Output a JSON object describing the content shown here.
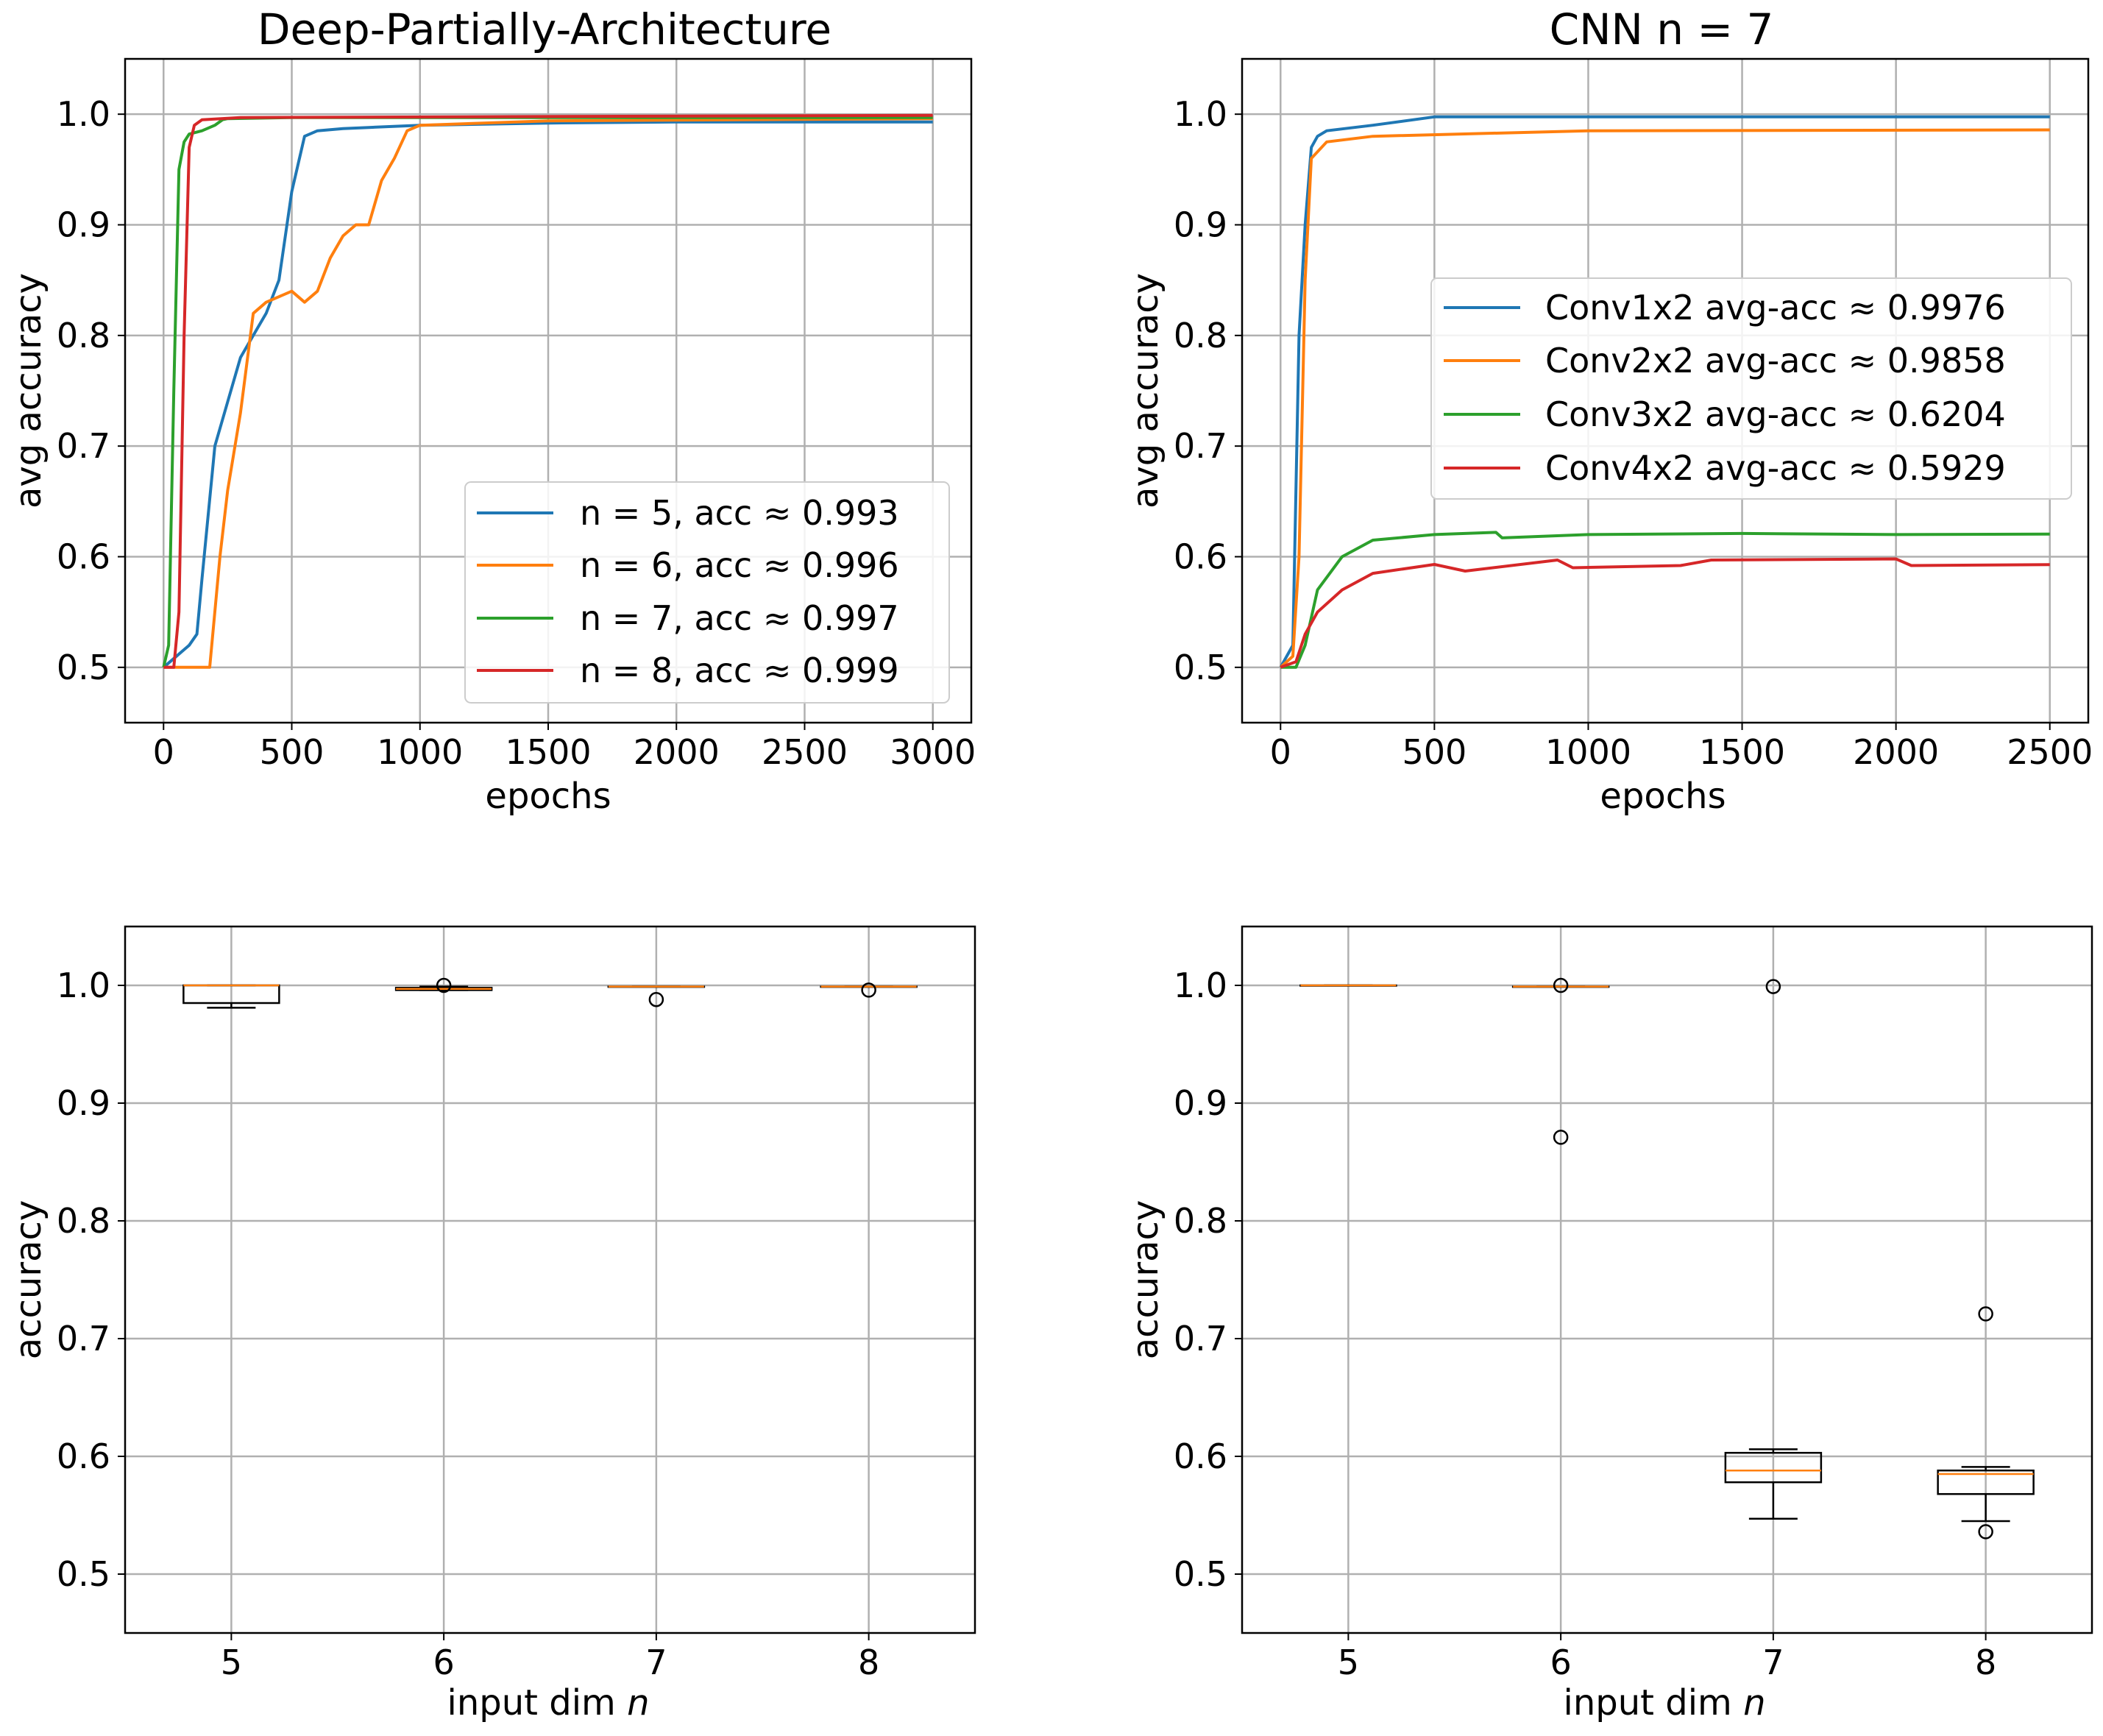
{
  "chart_data": [
    {
      "type": "line",
      "title": "Deep-Partially-Architecture",
      "xlabel": "epochs",
      "ylabel": "avg accuracy",
      "xlim": [
        -150,
        3150
      ],
      "ylim": [
        0.45,
        1.05
      ],
      "xticks": [
        0,
        500,
        1000,
        1500,
        2000,
        2500,
        3000
      ],
      "yticks": [
        0.5,
        0.6,
        0.7,
        0.8,
        0.9,
        1.0
      ],
      "xtick_labels": [
        "0",
        "500",
        "1000",
        "1500",
        "2000",
        "2500",
        "3000"
      ],
      "ytick_labels": [
        "0.5",
        "0.6",
        "0.7",
        "0.8",
        "0.9",
        "1.0"
      ],
      "grid": true,
      "legend_position": "lower-right",
      "series": [
        {
          "name": "n = 5, acc ≈ 0.993",
          "color": "#1f77b4",
          "x": [
            0,
            50,
            100,
            130,
            150,
            200,
            250,
            300,
            350,
            400,
            450,
            500,
            550,
            600,
            700,
            800,
            1000,
            1500,
            2000,
            3000
          ],
          "y": [
            0.5,
            0.51,
            0.52,
            0.53,
            0.58,
            0.7,
            0.74,
            0.78,
            0.8,
            0.82,
            0.85,
            0.93,
            0.98,
            0.985,
            0.987,
            0.988,
            0.99,
            0.992,
            0.993,
            0.993
          ]
        },
        {
          "name": "n = 6, acc ≈ 0.996",
          "color": "#ff7f0e",
          "x": [
            0,
            100,
            180,
            220,
            250,
            300,
            350,
            400,
            450,
            500,
            550,
            600,
            650,
            700,
            750,
            800,
            850,
            900,
            950,
            1000,
            1500,
            3000
          ],
          "y": [
            0.5,
            0.5,
            0.5,
            0.6,
            0.66,
            0.73,
            0.82,
            0.83,
            0.835,
            0.84,
            0.83,
            0.84,
            0.87,
            0.89,
            0.9,
            0.9,
            0.94,
            0.96,
            0.985,
            0.99,
            0.994,
            0.996
          ]
        },
        {
          "name": "n = 7, acc ≈ 0.997",
          "color": "#2ca02c",
          "x": [
            0,
            20,
            40,
            60,
            80,
            100,
            150,
            200,
            230,
            250,
            500,
            3000
          ],
          "y": [
            0.5,
            0.52,
            0.75,
            0.95,
            0.975,
            0.982,
            0.985,
            0.99,
            0.995,
            0.996,
            0.997,
            0.997
          ]
        },
        {
          "name": "n = 8, acc ≈ 0.999",
          "color": "#d62728",
          "x": [
            0,
            40,
            60,
            80,
            100,
            120,
            150,
            300,
            3000
          ],
          "y": [
            0.5,
            0.5,
            0.55,
            0.8,
            0.97,
            0.99,
            0.995,
            0.997,
            0.999
          ]
        }
      ]
    },
    {
      "type": "line",
      "title": "CNN n = 7",
      "xlabel": "epochs",
      "ylabel": "avg accuracy",
      "xlim": [
        -125,
        2625
      ],
      "ylim": [
        0.45,
        1.05
      ],
      "xticks": [
        0,
        500,
        1000,
        1500,
        2000,
        2500
      ],
      "yticks": [
        0.5,
        0.6,
        0.7,
        0.8,
        0.9,
        1.0
      ],
      "xtick_labels": [
        "0",
        "500",
        "1000",
        "1500",
        "2000",
        "2500"
      ],
      "ytick_labels": [
        "0.5",
        "0.6",
        "0.7",
        "0.8",
        "0.9",
        "1.0"
      ],
      "grid": true,
      "legend_position": "center-right",
      "series": [
        {
          "name": "Conv1x2 avg-acc ≈ 0.9976",
          "color": "#1f77b4",
          "x": [
            0,
            40,
            60,
            80,
            100,
            120,
            150,
            300,
            500,
            2500
          ],
          "y": [
            0.5,
            0.52,
            0.8,
            0.9,
            0.97,
            0.98,
            0.985,
            0.99,
            0.9976,
            0.9976
          ]
        },
        {
          "name": "Conv2x2 avg-acc ≈ 0.9858",
          "color": "#ff7f0e",
          "x": [
            0,
            40,
            60,
            80,
            100,
            150,
            300,
            1000,
            2500
          ],
          "y": [
            0.5,
            0.51,
            0.6,
            0.85,
            0.96,
            0.975,
            0.98,
            0.985,
            0.9858
          ]
        },
        {
          "name": "Conv3x2 avg-acc ≈ 0.6204",
          "color": "#2ca02c",
          "x": [
            0,
            50,
            80,
            120,
            200,
            300,
            500,
            700,
            720,
            1000,
            1500,
            2000,
            2500
          ],
          "y": [
            0.5,
            0.5,
            0.52,
            0.57,
            0.6,
            0.615,
            0.62,
            0.622,
            0.617,
            0.62,
            0.621,
            0.62,
            0.6204
          ]
        },
        {
          "name": "Conv4x2 avg-acc ≈ 0.5929",
          "color": "#d62728",
          "x": [
            0,
            50,
            80,
            120,
            200,
            300,
            500,
            600,
            900,
            950,
            1300,
            1400,
            2000,
            2050,
            2500
          ],
          "y": [
            0.5,
            0.505,
            0.53,
            0.55,
            0.57,
            0.585,
            0.593,
            0.587,
            0.597,
            0.59,
            0.592,
            0.597,
            0.598,
            0.592,
            0.5929
          ]
        }
      ]
    },
    {
      "type": "box",
      "title": "",
      "xlabel": "input dim n",
      "ylabel": "accuracy",
      "ylim": [
        0.45,
        1.05
      ],
      "categories": [
        "5",
        "6",
        "7",
        "8"
      ],
      "yticks": [
        0.5,
        0.6,
        0.7,
        0.8,
        0.9,
        1.0
      ],
      "ytick_labels": [
        "0.5",
        "0.6",
        "0.7",
        "0.8",
        "0.9",
        "1.0"
      ],
      "grid": true,
      "boxes": [
        {
          "category": "5",
          "q1": 0.985,
          "median": 1.0,
          "q3": 1.0,
          "whisker_low": 0.981,
          "whisker_high": 1.0,
          "outliers": []
        },
        {
          "category": "6",
          "q1": 0.996,
          "median": 0.997,
          "q3": 0.998,
          "whisker_low": 0.996,
          "whisker_high": 0.999,
          "outliers": [
            1.0
          ]
        },
        {
          "category": "7",
          "q1": 0.999,
          "median": 0.999,
          "q3": 0.999,
          "whisker_low": 0.999,
          "whisker_high": 0.999,
          "outliers": [
            0.988
          ]
        },
        {
          "category": "8",
          "q1": 0.999,
          "median": 0.999,
          "q3": 0.999,
          "whisker_low": 0.999,
          "whisker_high": 0.999,
          "outliers": [
            0.996
          ]
        }
      ]
    },
    {
      "type": "box",
      "title": "",
      "xlabel": "input dim n",
      "ylabel": "accuracy",
      "ylim": [
        0.45,
        1.05
      ],
      "categories": [
        "5",
        "6",
        "7",
        "8"
      ],
      "yticks": [
        0.5,
        0.6,
        0.7,
        0.8,
        0.9,
        1.0
      ],
      "ytick_labels": [
        "0.5",
        "0.6",
        "0.7",
        "0.8",
        "0.9",
        "1.0"
      ],
      "grid": true,
      "boxes": [
        {
          "category": "5",
          "q1": 1.0,
          "median": 1.0,
          "q3": 1.0,
          "whisker_low": 1.0,
          "whisker_high": 1.0,
          "outliers": []
        },
        {
          "category": "6",
          "q1": 0.999,
          "median": 0.999,
          "q3": 0.999,
          "whisker_low": 0.999,
          "whisker_high": 0.999,
          "outliers": [
            1.0,
            0.871
          ]
        },
        {
          "category": "7",
          "q1": 0.578,
          "median": 0.588,
          "q3": 0.603,
          "whisker_low": 0.547,
          "whisker_high": 0.606,
          "outliers": [
            0.999
          ]
        },
        {
          "category": "8",
          "q1": 0.568,
          "median": 0.585,
          "q3": 0.588,
          "whisker_low": 0.545,
          "whisker_high": 0.591,
          "outliers": [
            0.721,
            0.536
          ]
        }
      ]
    }
  ],
  "colors": {
    "grid": "#b0b0b0",
    "axes": "#000000",
    "median": "#ff7f0e"
  }
}
